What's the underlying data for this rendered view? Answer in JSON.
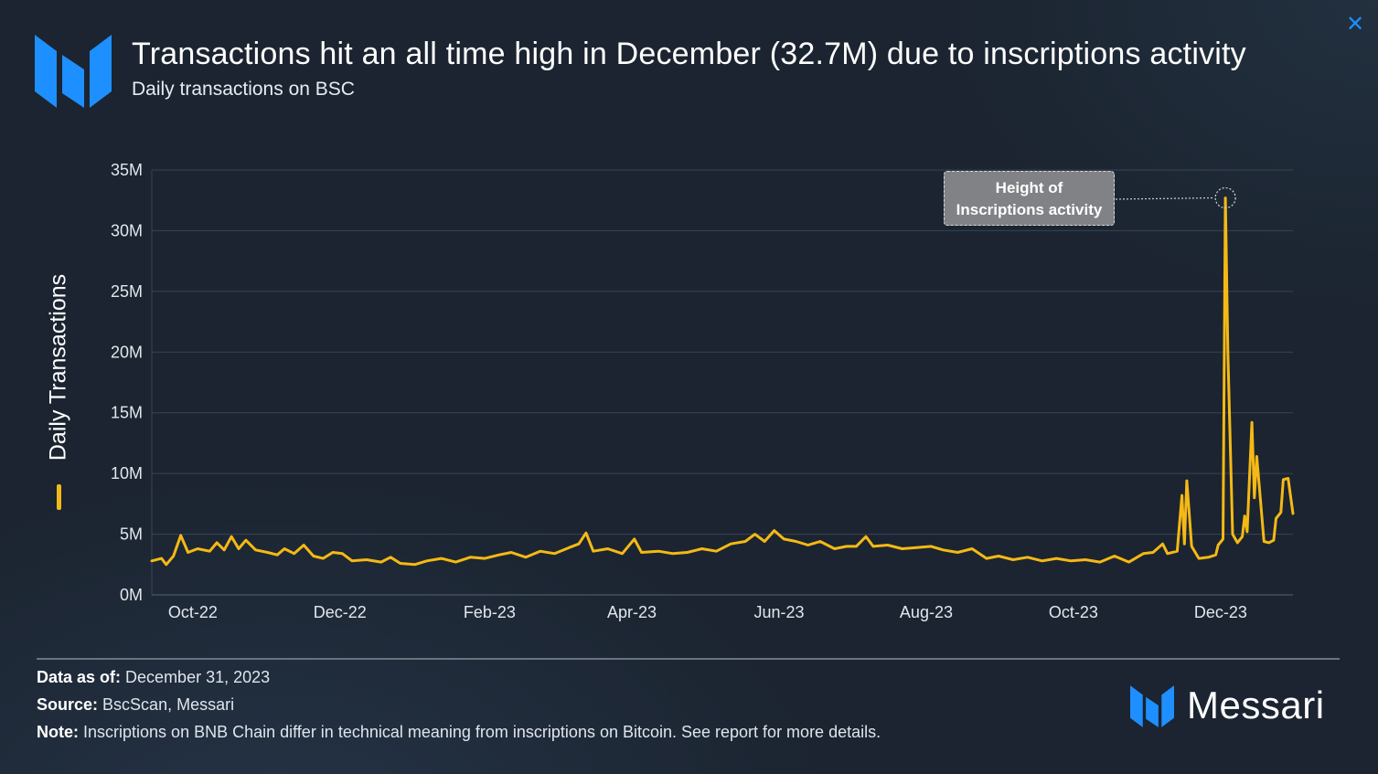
{
  "header": {
    "title": "Transactions hit an all time high in December (32.7M) due to inscriptions activity",
    "subtitle": "Daily transactions on BSC"
  },
  "close_icon": "close-icon",
  "colors": {
    "series": "#f5b915",
    "accent": "#1e8fff",
    "background": "#1b2430"
  },
  "annotation": {
    "line1": "Height of",
    "line2": "Inscriptions activity"
  },
  "footer": {
    "data_as_of_label": "Data as of:",
    "data_as_of_value": "December 31, 2023",
    "source_label": "Source:",
    "source_value": "BscScan, Messari",
    "note_label": "Note:",
    "note_value": "Inscriptions on BNB Chain differ in technical meaning from inscriptions on Bitcoin. See report for more details."
  },
  "brand": {
    "name": "Messari"
  },
  "chart_data": {
    "type": "line",
    "title": "Transactions hit an all time high in December (32.7M) due to inscriptions activity",
    "subtitle": "Daily transactions on BSC",
    "xlabel": "",
    "ylabel": "Daily Transactions",
    "ylim": [
      0,
      35
    ],
    "y_ticks": [
      "0M",
      "5M",
      "10M",
      "15M",
      "20M",
      "25M",
      "30M",
      "35M"
    ],
    "x_ticks": [
      "Oct-22",
      "Dec-22",
      "Feb-23",
      "Apr-23",
      "Jun-23",
      "Aug-23",
      "Oct-23",
      "Dec-23"
    ],
    "x_range": [
      "2022-09-14",
      "2023-12-31"
    ],
    "grid": true,
    "legend": "left",
    "series": [
      {
        "name": "Daily Transactions",
        "unit": "M",
        "points": [
          [
            "2022-09-14",
            2.8
          ],
          [
            "2022-09-18",
            3.0
          ],
          [
            "2022-09-20",
            2.5
          ],
          [
            "2022-09-23",
            3.2
          ],
          [
            "2022-09-26",
            4.9
          ],
          [
            "2022-09-29",
            3.5
          ],
          [
            "2022-10-03",
            3.8
          ],
          [
            "2022-10-08",
            3.6
          ],
          [
            "2022-10-11",
            4.3
          ],
          [
            "2022-10-14",
            3.7
          ],
          [
            "2022-10-17",
            4.8
          ],
          [
            "2022-10-20",
            3.8
          ],
          [
            "2022-10-23",
            4.5
          ],
          [
            "2022-10-27",
            3.7
          ],
          [
            "2022-11-01",
            3.5
          ],
          [
            "2022-11-05",
            3.3
          ],
          [
            "2022-11-08",
            3.8
          ],
          [
            "2022-11-12",
            3.4
          ],
          [
            "2022-11-16",
            4.1
          ],
          [
            "2022-11-20",
            3.2
          ],
          [
            "2022-11-24",
            3.0
          ],
          [
            "2022-11-28",
            3.5
          ],
          [
            "2022-12-02",
            3.4
          ],
          [
            "2022-12-06",
            2.8
          ],
          [
            "2022-12-12",
            2.9
          ],
          [
            "2022-12-18",
            2.7
          ],
          [
            "2022-12-22",
            3.1
          ],
          [
            "2022-12-26",
            2.6
          ],
          [
            "2023-01-01",
            2.5
          ],
          [
            "2023-01-06",
            2.8
          ],
          [
            "2023-01-12",
            3.0
          ],
          [
            "2023-01-18",
            2.7
          ],
          [
            "2023-01-24",
            3.1
          ],
          [
            "2023-01-30",
            3.0
          ],
          [
            "2023-02-05",
            3.3
          ],
          [
            "2023-02-10",
            3.5
          ],
          [
            "2023-02-16",
            3.1
          ],
          [
            "2023-02-22",
            3.6
          ],
          [
            "2023-02-28",
            3.4
          ],
          [
            "2023-03-06",
            3.9
          ],
          [
            "2023-03-10",
            4.2
          ],
          [
            "2023-03-13",
            5.1
          ],
          [
            "2023-03-16",
            3.6
          ],
          [
            "2023-03-22",
            3.8
          ],
          [
            "2023-03-28",
            3.4
          ],
          [
            "2023-04-02",
            4.6
          ],
          [
            "2023-04-05",
            3.5
          ],
          [
            "2023-04-12",
            3.6
          ],
          [
            "2023-04-18",
            3.4
          ],
          [
            "2023-04-24",
            3.5
          ],
          [
            "2023-04-30",
            3.8
          ],
          [
            "2023-05-06",
            3.6
          ],
          [
            "2023-05-12",
            4.2
          ],
          [
            "2023-05-18",
            4.4
          ],
          [
            "2023-05-22",
            5.0
          ],
          [
            "2023-05-26",
            4.4
          ],
          [
            "2023-05-30",
            5.3
          ],
          [
            "2023-06-03",
            4.6
          ],
          [
            "2023-06-08",
            4.4
          ],
          [
            "2023-06-13",
            4.1
          ],
          [
            "2023-06-18",
            4.4
          ],
          [
            "2023-06-24",
            3.8
          ],
          [
            "2023-06-29",
            4.0
          ],
          [
            "2023-07-03",
            4.0
          ],
          [
            "2023-07-07",
            4.8
          ],
          [
            "2023-07-10",
            4.0
          ],
          [
            "2023-07-16",
            4.1
          ],
          [
            "2023-07-22",
            3.8
          ],
          [
            "2023-07-28",
            3.9
          ],
          [
            "2023-08-03",
            4.0
          ],
          [
            "2023-08-08",
            3.7
          ],
          [
            "2023-08-14",
            3.5
          ],
          [
            "2023-08-20",
            3.8
          ],
          [
            "2023-08-26",
            3.0
          ],
          [
            "2023-08-31",
            3.2
          ],
          [
            "2023-09-06",
            2.9
          ],
          [
            "2023-09-12",
            3.1
          ],
          [
            "2023-09-18",
            2.8
          ],
          [
            "2023-09-24",
            3.0
          ],
          [
            "2023-09-30",
            2.8
          ],
          [
            "2023-10-06",
            2.9
          ],
          [
            "2023-10-12",
            2.7
          ],
          [
            "2023-10-18",
            3.2
          ],
          [
            "2023-10-24",
            2.7
          ],
          [
            "2023-10-30",
            3.4
          ],
          [
            "2023-11-03",
            3.5
          ],
          [
            "2023-11-07",
            4.2
          ],
          [
            "2023-11-09",
            3.4
          ],
          [
            "2023-11-13",
            3.6
          ],
          [
            "2023-11-15",
            8.2
          ],
          [
            "2023-11-16",
            4.2
          ],
          [
            "2023-11-17",
            9.4
          ],
          [
            "2023-11-19",
            4.0
          ],
          [
            "2023-11-22",
            3.0
          ],
          [
            "2023-11-26",
            3.1
          ],
          [
            "2023-11-29",
            3.3
          ],
          [
            "2023-11-30",
            4.1
          ],
          [
            "2023-12-02",
            4.6
          ],
          [
            "2023-12-03",
            32.7
          ],
          [
            "2023-12-04",
            20.0
          ],
          [
            "2023-12-06",
            5.0
          ],
          [
            "2023-12-08",
            4.3
          ],
          [
            "2023-12-10",
            4.8
          ],
          [
            "2023-12-11",
            6.5
          ],
          [
            "2023-12-12",
            5.2
          ],
          [
            "2023-12-14",
            14.2
          ],
          [
            "2023-12-15",
            8.0
          ],
          [
            "2023-12-16",
            11.4
          ],
          [
            "2023-12-17",
            9.0
          ],
          [
            "2023-12-19",
            4.4
          ],
          [
            "2023-12-21",
            4.3
          ],
          [
            "2023-12-23",
            4.5
          ],
          [
            "2023-12-24",
            6.3
          ],
          [
            "2023-12-26",
            6.8
          ],
          [
            "2023-12-27",
            9.5
          ],
          [
            "2023-12-29",
            9.6
          ],
          [
            "2023-12-31",
            6.7
          ]
        ]
      }
    ],
    "annotations": [
      {
        "text": "Height of Inscriptions activity",
        "date": "2023-12-03",
        "value": 32.7
      }
    ]
  }
}
